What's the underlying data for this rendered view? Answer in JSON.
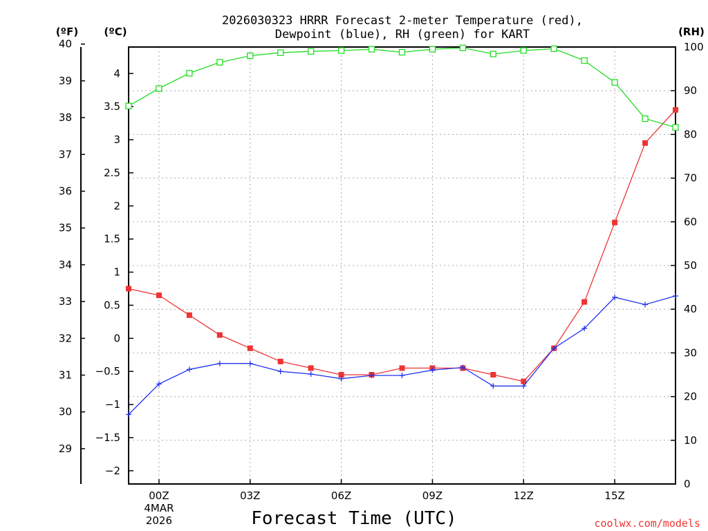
{
  "chart_data": {
    "type": "line",
    "title": [
      "2026030323 HRRR Forecast 2-meter Temperature (red),",
      "Dewpoint (blue), RH (green) for KART"
    ],
    "xlabel": "Forecast Time (UTC)",
    "x_ticks": [
      {
        "hour": 0,
        "label": "00Z"
      },
      {
        "hour": 3,
        "label": "03Z"
      },
      {
        "hour": 6,
        "label": "06Z"
      },
      {
        "hour": 9,
        "label": "09Z"
      },
      {
        "hour": 12,
        "label": "12Z"
      },
      {
        "hour": 15,
        "label": "15Z"
      }
    ],
    "date_label": [
      "4MAR",
      "2026"
    ],
    "x_range_hours": [
      -1,
      17
    ],
    "y_left_c": {
      "unit": "(ºC)",
      "range": [
        -2.2,
        4.4
      ],
      "ticks": [
        -2,
        -1.5,
        -1,
        -0.5,
        0,
        0.5,
        1,
        1.5,
        2,
        2.5,
        3,
        3.5,
        4
      ],
      "tick_labels": [
        "−2",
        "−1.5",
        "−1",
        "−0.5",
        "0",
        "0.5",
        "1",
        "1.5",
        "2",
        "2.5",
        "3",
        "3.5",
        "4"
      ]
    },
    "y_left_f": {
      "unit": "(ºF)",
      "ticks": [
        29,
        30,
        31,
        32,
        33,
        34,
        35,
        36,
        37,
        38,
        39,
        40
      ]
    },
    "y_right_rh": {
      "unit": "(RH)",
      "range": [
        0,
        100
      ],
      "ticks": [
        0,
        10,
        20,
        30,
        40,
        50,
        60,
        70,
        80,
        90,
        100
      ]
    },
    "series": [
      {
        "name": "Temperature",
        "color": "#ee3333",
        "axis": "C",
        "marker": "filled-square",
        "x": [
          -1,
          0,
          1,
          2,
          3,
          4,
          5,
          6,
          7,
          8,
          9,
          10,
          11,
          12,
          13,
          14,
          15,
          16,
          17
        ],
        "values": [
          0.75,
          0.65,
          0.35,
          0.05,
          -0.15,
          -0.35,
          -0.45,
          -0.55,
          -0.55,
          -0.45,
          -0.45,
          -0.45,
          -0.55,
          -0.65,
          -0.15,
          0.55,
          1.75,
          2.95,
          3.45
        ]
      },
      {
        "name": "Dewpoint",
        "color": "#2233ee",
        "axis": "C",
        "marker": "plus",
        "x": [
          -1,
          0,
          1,
          2,
          3,
          4,
          5,
          6,
          7,
          8,
          9,
          10,
          11,
          12,
          13,
          14,
          15,
          16,
          17
        ],
        "values": [
          -1.15,
          -0.69,
          -0.47,
          -0.38,
          -0.38,
          -0.5,
          -0.54,
          -0.61,
          -0.56,
          -0.56,
          -0.48,
          -0.44,
          -0.72,
          -0.72,
          -0.15,
          0.15,
          0.62,
          0.51,
          0.64
        ]
      },
      {
        "name": "RH",
        "color": "#22dd22",
        "axis": "RH",
        "marker": "open-square",
        "x": [
          -1,
          0,
          1,
          2,
          3,
          4,
          5,
          6,
          7,
          8,
          9,
          10,
          11,
          12,
          13,
          14,
          15,
          16,
          17
        ],
        "values": [
          86.5,
          90.5,
          94,
          96.5,
          98,
          98.7,
          99,
          99.2,
          99.5,
          98.8,
          99.5,
          99.8,
          98.4,
          99.2,
          99.6,
          96.9,
          91.9,
          83.6,
          81.6
        ]
      }
    ]
  },
  "credit": "coolwx.com/models"
}
